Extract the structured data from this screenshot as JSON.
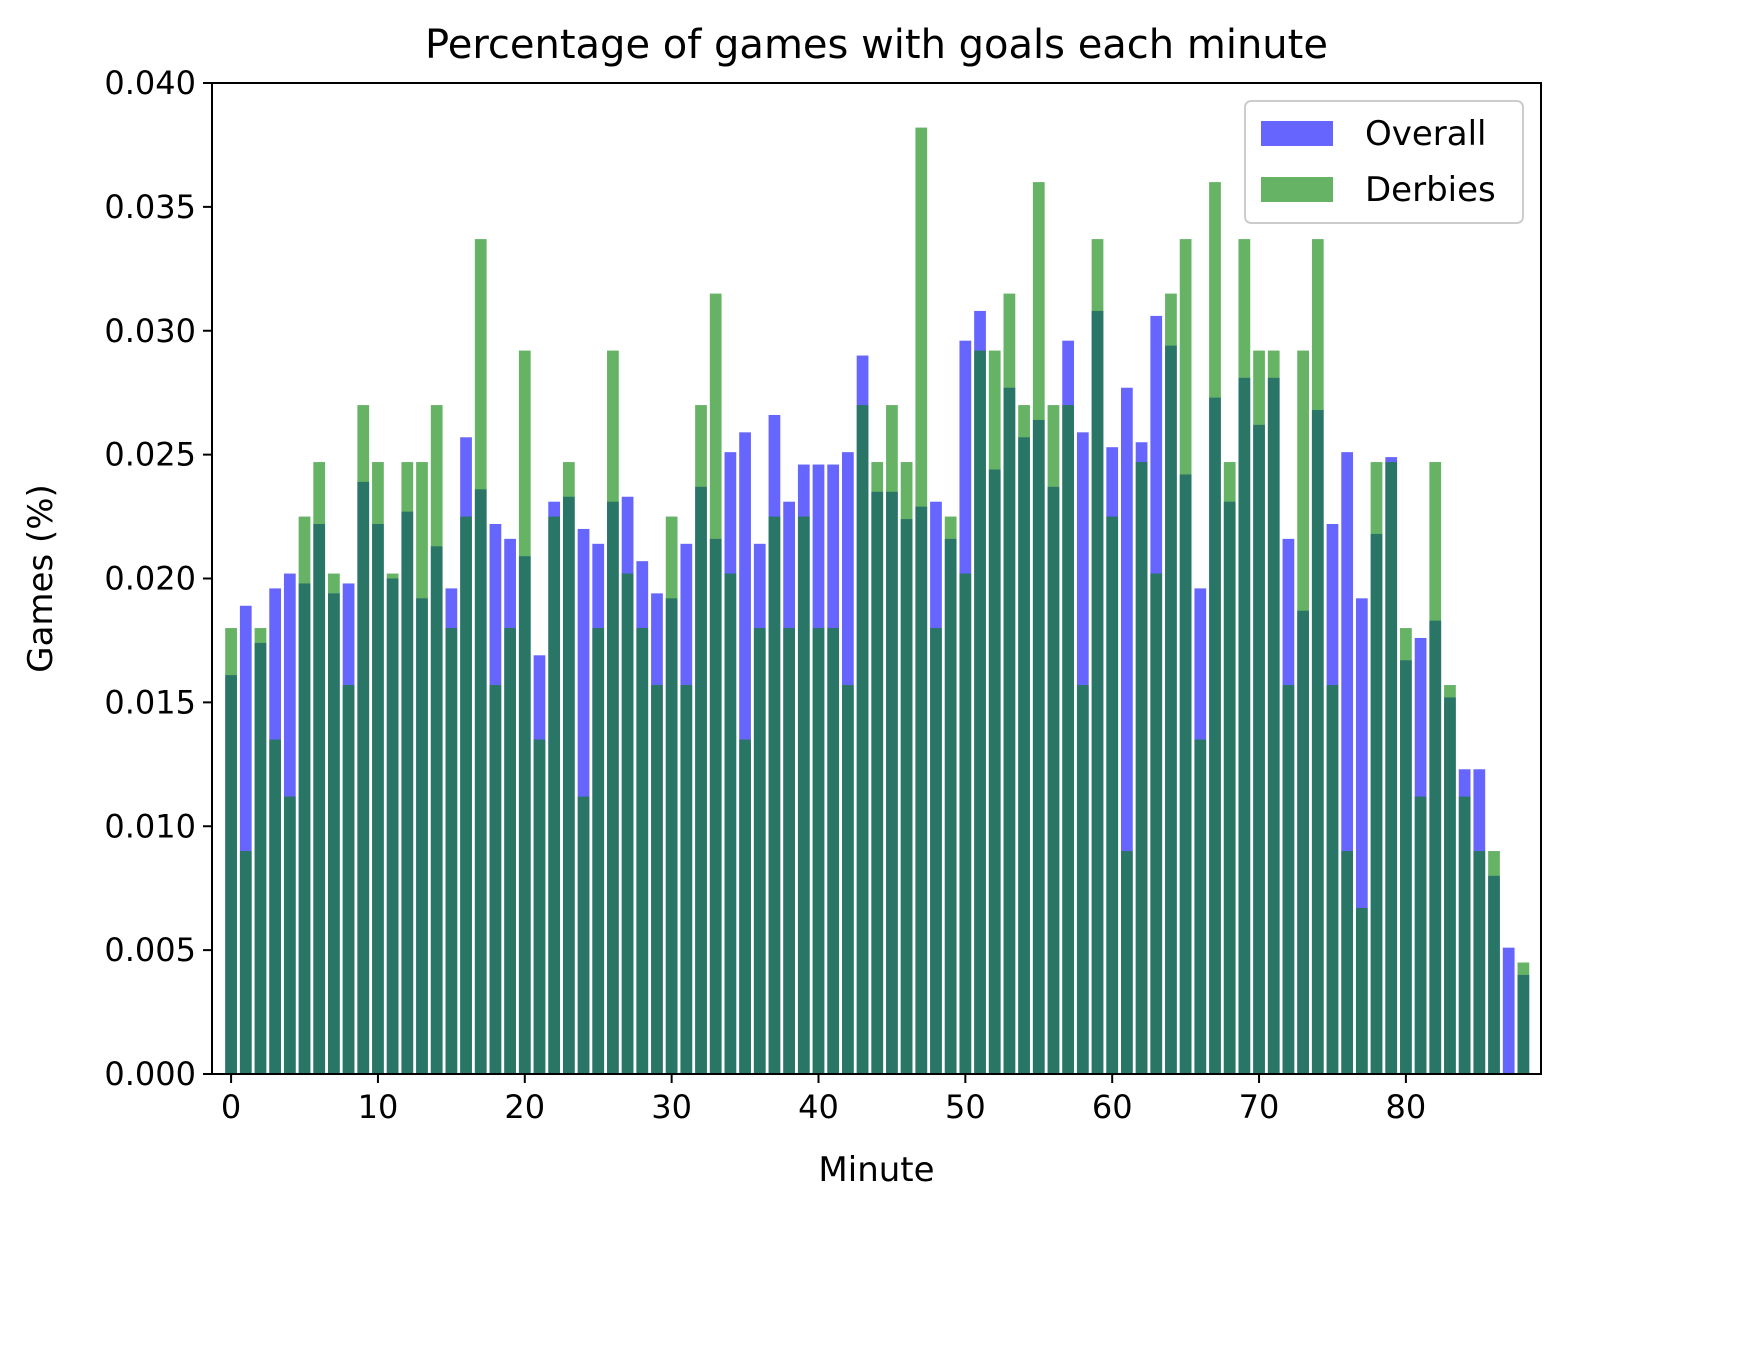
{
  "chart_data": {
    "type": "bar",
    "title": "Percentage of games with goals each minute",
    "xlabel": "Minute",
    "ylabel": "Games (%)",
    "xlim": [
      -1.3,
      89.2
    ],
    "ylim": [
      0,
      0.04
    ],
    "xticks": [
      0,
      10,
      20,
      30,
      40,
      50,
      60,
      70,
      80
    ],
    "xtick_labels": [
      "0",
      "10",
      "20",
      "30",
      "40",
      "50",
      "60",
      "70",
      "80"
    ],
    "yticks": [
      0,
      0.005,
      0.01,
      0.015,
      0.02,
      0.025,
      0.03,
      0.035,
      0.04
    ],
    "ytick_labels": [
      "0.000",
      "0.005",
      "0.010",
      "0.015",
      "0.020",
      "0.025",
      "0.030",
      "0.035",
      "0.040"
    ],
    "legend_position": "top-right",
    "x": [
      0,
      1,
      2,
      3,
      4,
      5,
      6,
      7,
      8,
      9,
      10,
      11,
      12,
      13,
      14,
      15,
      16,
      17,
      18,
      19,
      20,
      21,
      22,
      23,
      24,
      25,
      26,
      27,
      28,
      29,
      30,
      31,
      32,
      33,
      34,
      35,
      36,
      37,
      38,
      39,
      40,
      41,
      42,
      43,
      44,
      45,
      46,
      47,
      48,
      49,
      50,
      51,
      52,
      53,
      54,
      55,
      56,
      57,
      58,
      59,
      60,
      61,
      62,
      63,
      64,
      65,
      66,
      67,
      68,
      69,
      70,
      71,
      72,
      73,
      74,
      75,
      76,
      77,
      78,
      79,
      80,
      81,
      82,
      83,
      84,
      85,
      86,
      87,
      88
    ],
    "series": [
      {
        "name": "Overall",
        "color": "#0000ff",
        "alpha": 0.6,
        "values": [
          0.0161,
          0.0189,
          0.0174,
          0.0196,
          0.0202,
          0.0198,
          0.0222,
          0.0194,
          0.0198,
          0.0239,
          0.0222,
          0.02,
          0.0227,
          0.0192,
          0.0213,
          0.0196,
          0.0257,
          0.0236,
          0.0222,
          0.0216,
          0.0209,
          0.0169,
          0.0231,
          0.0233,
          0.022,
          0.0214,
          0.0231,
          0.0233,
          0.0207,
          0.0194,
          0.0192,
          0.0214,
          0.0237,
          0.0216,
          0.0251,
          0.0259,
          0.0214,
          0.0266,
          0.0231,
          0.0246,
          0.0246,
          0.0246,
          0.0251,
          0.029,
          0.0235,
          0.0235,
          0.0224,
          0.0229,
          0.0231,
          0.0216,
          0.0296,
          0.0308,
          0.0244,
          0.0277,
          0.0257,
          0.0264,
          0.0237,
          0.0296,
          0.0259,
          0.0308,
          0.0253,
          0.0277,
          0.0255,
          0.0306,
          0.0294,
          0.0242,
          0.0196,
          0.0273,
          0.0231,
          0.0281,
          0.0262,
          0.0281,
          0.0216,
          0.0187,
          0.0268,
          0.0222,
          0.0251,
          0.0192,
          0.0218,
          0.0249,
          0.0167,
          0.0176,
          0.0183,
          0.0152,
          0.0123,
          0.0123,
          0.008,
          0.0051,
          0.004
        ]
      },
      {
        "name": "Derbies",
        "color": "#008000",
        "alpha": 0.6,
        "values": [
          0.018,
          0.009,
          0.018,
          0.0135,
          0.0112,
          0.0225,
          0.0247,
          0.0202,
          0.0157,
          0.027,
          0.0247,
          0.0202,
          0.0247,
          0.0247,
          0.027,
          0.018,
          0.0225,
          0.0337,
          0.0157,
          0.018,
          0.0292,
          0.0135,
          0.0225,
          0.0247,
          0.0112,
          0.018,
          0.0292,
          0.0202,
          0.018,
          0.0157,
          0.0225,
          0.0157,
          0.027,
          0.0315,
          0.0202,
          0.0135,
          0.018,
          0.0225,
          0.018,
          0.0225,
          0.018,
          0.018,
          0.0157,
          0.027,
          0.0247,
          0.027,
          0.0247,
          0.0382,
          0.018,
          0.0225,
          0.0202,
          0.0292,
          0.0292,
          0.0315,
          0.027,
          0.036,
          0.027,
          0.027,
          0.0157,
          0.0337,
          0.0225,
          0.009,
          0.0247,
          0.0202,
          0.0315,
          0.0337,
          0.0135,
          0.036,
          0.0247,
          0.0337,
          0.0292,
          0.0292,
          0.0157,
          0.0292,
          0.0337,
          0.0157,
          0.009,
          0.0067,
          0.0247,
          0.0247,
          0.018,
          0.0112,
          0.0247,
          0.0157,
          0.0112,
          0.009,
          0.009,
          0.0,
          0.0045
        ]
      }
    ]
  }
}
